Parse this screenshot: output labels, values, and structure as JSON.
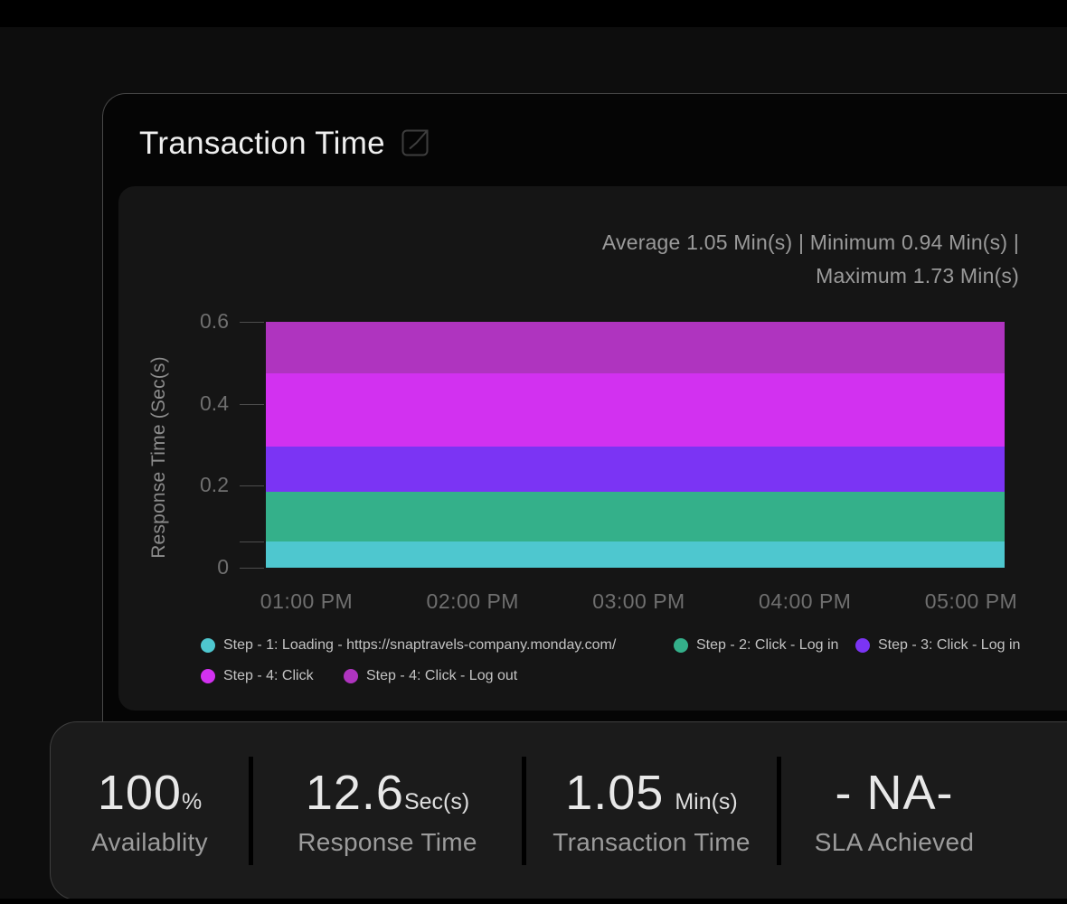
{
  "header": {
    "title": "Transaction Time",
    "expand_icon": "external-link-icon"
  },
  "chart_data": {
    "type": "area",
    "stacked": true,
    "title": "Transaction Time",
    "ylabel": "Response Time (Sec(s)",
    "xlabel": "",
    "ylim": [
      0,
      0.6
    ],
    "ytick_values": [
      0,
      0.2,
      0.4,
      0.6
    ],
    "ytick_labels": [
      "0",
      "0.2",
      "0.4",
      "0.6"
    ],
    "minor_tick_value": 0.065,
    "x_categories": [
      "01:00 PM",
      "02:00 PM",
      "03:00 PM",
      "04:00 PM",
      "05:00 PM"
    ],
    "grid": false,
    "legend_position": "bottom",
    "series": [
      {
        "name": "Step - 1: Loading - https://snaptravels-company.monday.com/",
        "color": "#4EC7CF",
        "values": [
          0.065,
          0.065,
          0.065,
          0.065,
          0.065
        ]
      },
      {
        "name": "Step - 2: Click - Log in",
        "color": "#34B08A",
        "values": [
          0.12,
          0.12,
          0.12,
          0.12,
          0.12
        ]
      },
      {
        "name": "Step - 3: Click - Log in",
        "color": "#7B34F4",
        "values": [
          0.11,
          0.11,
          0.11,
          0.11,
          0.11
        ]
      },
      {
        "name": "Step - 4: Click",
        "color": "#D231F0",
        "values": [
          0.18,
          0.18,
          0.18,
          0.18,
          0.18
        ]
      },
      {
        "name": "Step - 4: Click - Log out",
        "color": "#AF34BF",
        "values": [
          0.125,
          0.125,
          0.125,
          0.125,
          0.125
        ]
      }
    ],
    "summary": {
      "line1": "Average 1.05 Min(s) | Minimum 0.94 Min(s) |",
      "line2": "Maximum 1.73 Min(s)",
      "average": "1.05 Min(s)",
      "minimum": "0.94 Min(s)",
      "maximum": "1.73 Min(s)"
    }
  },
  "kpis": [
    {
      "value": "100",
      "unit": "%",
      "label": "Availablity",
      "spaced_unit": false
    },
    {
      "value": "12.6",
      "unit": "Sec(s)",
      "label": "Response Time",
      "spaced_unit": false
    },
    {
      "value": "1.05",
      "unit": "Min(s)",
      "label": "Transaction Time",
      "spaced_unit": true
    },
    {
      "value": "- NA-",
      "unit": "",
      "label": "SLA Achieved",
      "spaced_unit": false
    }
  ],
  "theme": {
    "background": "#0D0D0D",
    "card_background": "#050505",
    "chart_panel_background": "#151515",
    "kpi_bar_background": "#1B1B1B",
    "border": "#474747"
  }
}
